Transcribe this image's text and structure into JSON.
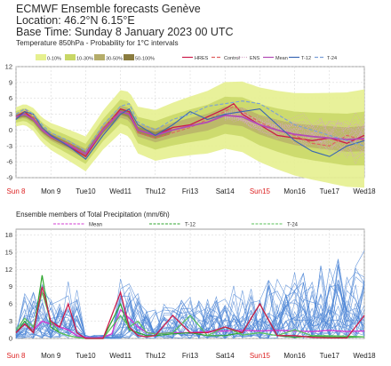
{
  "header": {
    "title": "ECMWF Ensemble forecasts Genève",
    "location": "Location:  46.2°N 6.15°E",
    "base_time": "Base Time: Sunday  8 January 2023 00 UTC",
    "subtitle": "Temperature 850hPa - Probability for 1°C intervals"
  },
  "colors": {
    "hires": "#cc1a4a",
    "control": "#e06060",
    "ens": "#d7a6c7",
    "mean": "#b24bb5",
    "t12": "#3a67b3",
    "t24": "#7aa0d8",
    "prob_0_10": "#e6f08f",
    "prob_10_30": "#c8d766",
    "prob_30_50": "#b5ad6a",
    "prob_50_100": "#8a7c3f",
    "precip_members": "#4d86d6",
    "precip_mean": "#d13bd1",
    "precip_t12": "#2ca52c",
    "precip_t24": "#59c259",
    "sunday_label": "#dd2222"
  },
  "chart_data": [
    {
      "type": "line",
      "title": "Temperature 850hPa - Probability for 1°C intervals",
      "ylim": [
        -9,
        12
      ],
      "yticks": [
        12,
        9,
        6,
        3,
        0,
        -3,
        -6,
        -9
      ],
      "x_range": [
        0,
        10
      ],
      "x_tick_labels": [
        "Sun 8",
        "Mon 9",
        "Tue10",
        "Wed11",
        "Thu12",
        "Fri13",
        "Sat14",
        "Sun15",
        "Mon16",
        "Tue17",
        "Wed18"
      ],
      "sunday_labels": [
        "Sun 8",
        "Sun15"
      ],
      "probability_legend": [
        "0-10%",
        "10-30%",
        "30-50%",
        "50-100%"
      ],
      "line_legend": [
        "HRES",
        "Control",
        "ENS",
        "Mean",
        "T-12",
        "T-24"
      ],
      "series": [
        {
          "name": "HRES",
          "x": [
            0,
            0.25,
            0.5,
            0.75,
            1,
            1.5,
            2,
            2.5,
            3,
            3.25,
            3.5,
            4,
            4.5,
            5,
            5.5,
            6,
            6.25,
            6.5,
            7,
            7.5,
            8,
            8.5,
            9,
            9.5,
            10
          ],
          "values": [
            2.5,
            3.5,
            2,
            0,
            -1,
            -3,
            -5,
            0,
            4,
            3.5,
            0,
            -1,
            0.5,
            1,
            2.5,
            4,
            5,
            3,
            1,
            -1,
            -1.5,
            -2,
            -1.5,
            -2.5,
            -1
          ]
        },
        {
          "name": "Control",
          "x": [
            0,
            0.25,
            0.5,
            0.75,
            1,
            1.5,
            2,
            2.5,
            3,
            3.25,
            3.5,
            4,
            4.5,
            5,
            5.5,
            6,
            6.25,
            6.5,
            7,
            7.5,
            8,
            8.5,
            9,
            9.5,
            10
          ],
          "values": [
            3,
            4,
            2.5,
            0.5,
            -1.5,
            -2.5,
            -4.5,
            0.5,
            3.5,
            3,
            -0.5,
            -1.5,
            -0.5,
            0.5,
            2,
            3.5,
            4.5,
            3.5,
            1.5,
            0,
            -1,
            -2.5,
            -3,
            -1,
            -2
          ]
        },
        {
          "name": "Mean",
          "x": [
            0,
            0.25,
            0.5,
            0.75,
            1,
            1.5,
            2,
            2.5,
            3,
            3.25,
            3.5,
            4,
            4.5,
            5,
            5.5,
            6,
            6.5,
            7,
            7.5,
            8,
            8.5,
            9,
            9.5,
            10
          ],
          "values": [
            2.5,
            3,
            2,
            0,
            -1.2,
            -2.8,
            -4.5,
            0,
            3.5,
            3,
            0,
            -1,
            0,
            0.8,
            1.5,
            2.8,
            2.5,
            1,
            0,
            -0.8,
            -1.2,
            -1.5,
            -1.8,
            -1.6
          ]
        },
        {
          "name": "T-12",
          "x": [
            0,
            0.25,
            0.5,
            0.75,
            1,
            1.5,
            2,
            2.5,
            3,
            3.25,
            3.5,
            4,
            4.5,
            5,
            5.5,
            6,
            6.5,
            7,
            7.5,
            8,
            8.5,
            9,
            9.5,
            10
          ],
          "values": [
            2,
            3.5,
            3,
            0.5,
            -1,
            -3,
            -5.5,
            -1,
            3,
            4,
            1,
            -1,
            1,
            3.5,
            2,
            3,
            3.5,
            4,
            1,
            -2,
            -4,
            -5,
            -3,
            -2
          ]
        },
        {
          "name": "T-24",
          "x": [
            0,
            0.25,
            0.5,
            0.75,
            1,
            1.5,
            2,
            2.5,
            3,
            3.25,
            3.5,
            4,
            4.5,
            5,
            5.5,
            6,
            6.5,
            7,
            7.5,
            8,
            8.5,
            9,
            9.5,
            10
          ],
          "values": [
            3,
            4,
            3,
            1,
            -0.5,
            -2,
            -4,
            1,
            4.5,
            5,
            1.5,
            0,
            2,
            3,
            4.5,
            5,
            5.5,
            5,
            3,
            1,
            0,
            -1,
            -2,
            -3
          ]
        }
      ]
    },
    {
      "type": "line",
      "title": "Ensemble members of Total Precipitation (mm/6h)",
      "ylim": [
        0,
        19
      ],
      "yticks": [
        18,
        15,
        12,
        9,
        6,
        3,
        0
      ],
      "x_range": [
        0,
        10
      ],
      "x_tick_labels": [
        "Sun 8",
        "Mon 9",
        "Tue10",
        "Wed11",
        "Thu12",
        "Fri13",
        "Sat14",
        "Sun15",
        "Mon16",
        "Tue17",
        "Wed18"
      ],
      "sunday_labels": [
        "Sun 8",
        "Sun15"
      ],
      "legend": [
        "Mean",
        "T-12",
        "T-24"
      ],
      "series": [
        {
          "name": "Mean",
          "x": [
            0,
            0.25,
            0.5,
            0.75,
            1,
            1.25,
            1.5,
            1.75,
            2,
            2.25,
            2.5,
            2.75,
            3,
            3.25,
            3.5,
            3.75,
            4,
            4.5,
            5,
            5.5,
            6,
            6.5,
            7,
            7.5,
            8,
            8.5,
            9,
            9.5,
            10
          ],
          "values": [
            1,
            2.5,
            1.5,
            3,
            2.5,
            2,
            1.5,
            0.5,
            0.2,
            0.1,
            0.2,
            0.8,
            5,
            3.5,
            2,
            1,
            0.8,
            1,
            1,
            1.2,
            1.3,
            1.4,
            1.3,
            1.4,
            1.3,
            1.2,
            1.4,
            1.2,
            1.3
          ]
        },
        {
          "name": "T-12",
          "x": [
            0,
            0.25,
            0.5,
            0.75,
            1,
            1.25,
            1.5,
            1.75,
            2,
            2.5,
            3,
            3.25,
            3.5,
            3.75,
            4,
            4.5,
            5,
            5.5,
            6,
            6.5,
            7,
            7.5,
            8,
            8.5,
            9,
            9.5,
            10
          ],
          "values": [
            1,
            3,
            1,
            11,
            2,
            1,
            0.5,
            0.2,
            0,
            0,
            6,
            1.5,
            1,
            0.5,
            0.5,
            0.8,
            1,
            0.5,
            0.5,
            1,
            6,
            0.5,
            0.2,
            0.4,
            0.3,
            0.2,
            0.3
          ]
        },
        {
          "name": "T-24",
          "x": [
            0,
            0.25,
            0.5,
            0.75,
            1,
            1.25,
            1.5,
            1.75,
            2,
            2.5,
            3,
            3.25,
            3.5,
            3.75,
            4,
            4.5,
            5,
            5.5,
            6,
            6.5,
            7,
            7.5,
            8,
            8.5,
            9,
            9.5,
            10
          ],
          "values": [
            1.5,
            3.5,
            2,
            8,
            3,
            1,
            0.5,
            0.2,
            0,
            0,
            4,
            2,
            3,
            1,
            0.8,
            1,
            4,
            0.5,
            2,
            0.6,
            1,
            0.5,
            1.5,
            0.5,
            0.5,
            0.4,
            0.3
          ]
        },
        {
          "name": "HRES",
          "x": [
            0,
            0.25,
            0.5,
            0.75,
            1,
            1.25,
            1.5,
            1.75,
            2,
            2.5,
            3,
            3.25,
            3.5,
            3.75,
            4,
            4.5,
            5,
            5.5,
            6,
            6.5,
            7,
            7.5,
            8,
            8.5,
            9,
            9.5,
            10
          ],
          "values": [
            1,
            2.5,
            1,
            9,
            3,
            2,
            6,
            1,
            0,
            0,
            8,
            2,
            0.5,
            0.3,
            0.5,
            4,
            1,
            1,
            2,
            1,
            6,
            0.5,
            0.5,
            0.2,
            0.1,
            0.1,
            4
          ]
        }
      ]
    }
  ]
}
